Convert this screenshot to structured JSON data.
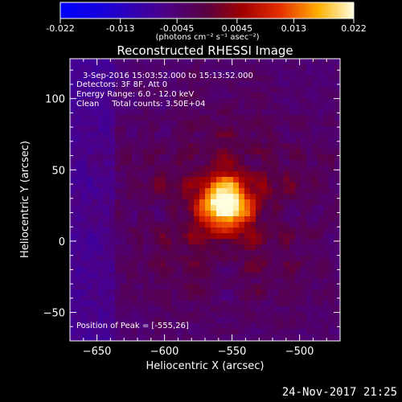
{
  "chart_data": {
    "type": "heatmap",
    "title": "Reconstructed RHESSI Image",
    "xlabel": "Heliocentric X (arcsec)",
    "ylabel": "Heliocentric Y (arcsec)",
    "xlim": [
      -670,
      -470
    ],
    "ylim": [
      -70,
      128
    ],
    "x_ticks": [
      -650,
      -600,
      -550,
      -500
    ],
    "y_ticks": [
      -50,
      0,
      50,
      100
    ],
    "colorbar": {
      "min": -0.022,
      "max": 0.022,
      "ticks": [
        "-0.022",
        "-0.013",
        "-0.0045",
        "0.0045",
        "0.013",
        "0.022"
      ],
      "tick_values": [
        -0.022,
        -0.013,
        -0.0045,
        0.0045,
        0.013,
        0.022
      ],
      "unit_label": "(photons cm⁻² s⁻¹ asec⁻²)"
    },
    "annotations": [
      "3-Sep-2016 15:03:52.000 to 15:13:52.000",
      "Detectors: 3F 8F, Att 0",
      "Energy Range: 6.0 - 12.0 keV",
      "Clean     Total counts: 3.50E+04"
    ],
    "peak_label": "Position of Peak = [-555,26]",
    "peak": [
      -555,
      26
    ],
    "grid": false
  },
  "footer": {
    "timestamp": "24-Nov-2017 21:25"
  },
  "colors": {
    "background": "#000000",
    "foreground": "#ffffff"
  }
}
